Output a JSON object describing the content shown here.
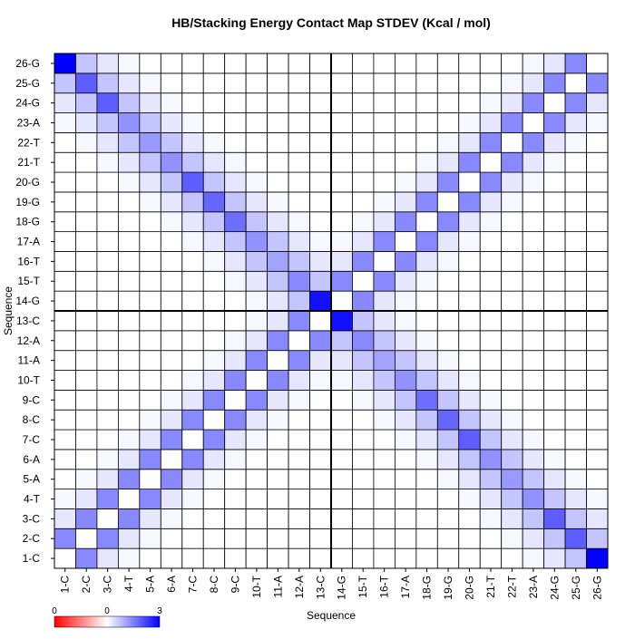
{
  "chart_data": {
    "type": "heatmap",
    "title": "HB/Stacking Energy Contact Map STDEV (Kcal / mol)",
    "x_label": "Sequence",
    "y_label": "Sequence",
    "categories": [
      "1-C",
      "2-C",
      "3-C",
      "4-T",
      "5-A",
      "6-A",
      "7-C",
      "8-C",
      "9-C",
      "10-T",
      "11-A",
      "12-A",
      "13-C",
      "14-G",
      "15-T",
      "16-T",
      "17-A",
      "18-G",
      "19-G",
      "20-G",
      "21-T",
      "22-T",
      "23-A",
      "24-G",
      "25-G",
      "26-G"
    ],
    "values": [
      [
        0,
        1.4,
        0.3,
        0.1,
        0,
        0,
        0,
        0,
        0,
        0,
        0,
        0,
        0,
        0,
        0,
        0,
        0,
        0,
        0,
        0,
        0,
        0,
        0.1,
        0.3,
        0.7,
        3.0
      ],
      [
        1.4,
        0,
        1.4,
        0.3,
        0.1,
        0,
        0,
        0,
        0,
        0,
        0,
        0,
        0,
        0,
        0,
        0,
        0,
        0,
        0,
        0,
        0,
        0.1,
        0.3,
        0.7,
        1.9,
        0.7
      ],
      [
        0.3,
        1.4,
        0,
        1.4,
        0.3,
        0.1,
        0,
        0,
        0,
        0,
        0,
        0,
        0,
        0,
        0,
        0,
        0,
        0,
        0,
        0,
        0.1,
        0.3,
        0.7,
        1.9,
        0.7,
        0.3
      ],
      [
        0.1,
        0.3,
        1.4,
        0,
        1.4,
        0.3,
        0.1,
        0,
        0,
        0,
        0,
        0,
        0,
        0,
        0,
        0,
        0,
        0,
        0,
        0.1,
        0.3,
        0.7,
        1.3,
        0.7,
        0.3,
        0.1
      ],
      [
        0,
        0.1,
        0.3,
        1.4,
        0,
        1.4,
        0.3,
        0.1,
        0,
        0,
        0,
        0,
        0,
        0,
        0,
        0,
        0,
        0,
        0.1,
        0.3,
        0.7,
        1.2,
        0.7,
        0.3,
        0.1,
        0
      ],
      [
        0,
        0,
        0.1,
        0.3,
        1.4,
        0,
        1.4,
        0.3,
        0.1,
        0,
        0,
        0,
        0,
        0,
        0,
        0,
        0,
        0.1,
        0.3,
        0.7,
        1.3,
        0.7,
        0.3,
        0.1,
        0,
        0
      ],
      [
        0,
        0,
        0,
        0.1,
        0.3,
        1.4,
        0,
        1.4,
        0.3,
        0.1,
        0,
        0,
        0,
        0,
        0,
        0,
        0.1,
        0.3,
        0.7,
        1.9,
        0.7,
        0.3,
        0.1,
        0,
        0,
        0
      ],
      [
        0,
        0,
        0,
        0,
        0.1,
        0.3,
        1.4,
        0,
        1.4,
        0.3,
        0.1,
        0,
        0,
        0,
        0,
        0.1,
        0.3,
        0.7,
        1.8,
        0.7,
        0.3,
        0.1,
        0,
        0,
        0,
        0
      ],
      [
        0,
        0,
        0,
        0,
        0,
        0.1,
        0.3,
        1.4,
        0,
        1.4,
        0.3,
        0.1,
        0,
        0,
        0.1,
        0.3,
        0.7,
        1.7,
        0.7,
        0.3,
        0.1,
        0,
        0,
        0,
        0,
        0
      ],
      [
        0,
        0,
        0,
        0,
        0,
        0,
        0.1,
        0.3,
        1.4,
        0,
        1.4,
        0.3,
        0.1,
        0.1,
        0.3,
        0.7,
        1.3,
        0.7,
        0.3,
        0.1,
        0,
        0,
        0,
        0,
        0,
        0
      ],
      [
        0,
        0,
        0,
        0,
        0,
        0,
        0,
        0.1,
        0.3,
        1.4,
        0,
        1.4,
        0.3,
        0.3,
        0.7,
        1.1,
        0.7,
        0.3,
        0.1,
        0,
        0,
        0,
        0,
        0,
        0,
        0
      ],
      [
        0,
        0,
        0,
        0,
        0,
        0,
        0,
        0,
        0.1,
        0.3,
        1.4,
        0,
        1.4,
        0.7,
        1.4,
        0.7,
        0.3,
        0.1,
        0,
        0,
        0,
        0,
        0,
        0,
        0,
        0
      ],
      [
        0,
        0,
        0,
        0,
        0,
        0,
        0,
        0,
        0,
        0.1,
        0.3,
        1.4,
        0,
        2.8,
        0.7,
        0.3,
        0.1,
        0,
        0,
        0,
        0,
        0,
        0,
        0,
        0,
        0
      ],
      [
        0,
        0,
        0,
        0,
        0,
        0,
        0,
        0,
        0,
        0.1,
        0.3,
        0.7,
        2.8,
        0,
        1.4,
        0.3,
        0.1,
        0,
        0,
        0,
        0,
        0,
        0,
        0,
        0,
        0
      ],
      [
        0,
        0,
        0,
        0,
        0,
        0,
        0,
        0,
        0.1,
        0.3,
        0.7,
        1.4,
        0.7,
        1.4,
        0,
        1.4,
        0.3,
        0.1,
        0,
        0,
        0,
        0,
        0,
        0,
        0,
        0
      ],
      [
        0,
        0,
        0,
        0,
        0,
        0,
        0,
        0.1,
        0.3,
        0.7,
        1.1,
        0.7,
        0.3,
        0.3,
        1.4,
        0,
        1.4,
        0.3,
        0.1,
        0,
        0,
        0,
        0,
        0,
        0,
        0
      ],
      [
        0,
        0,
        0,
        0,
        0,
        0,
        0.1,
        0.3,
        0.7,
        1.3,
        0.7,
        0.3,
        0.1,
        0.1,
        0.3,
        1.4,
        0,
        1.4,
        0.3,
        0.1,
        0,
        0,
        0,
        0,
        0,
        0
      ],
      [
        0,
        0,
        0,
        0,
        0,
        0.1,
        0.3,
        0.7,
        1.7,
        0.7,
        0.3,
        0.1,
        0,
        0,
        0.1,
        0.3,
        1.4,
        0,
        1.4,
        0.3,
        0.1,
        0,
        0,
        0,
        0,
        0
      ],
      [
        0,
        0,
        0,
        0,
        0.1,
        0.3,
        0.7,
        1.8,
        0.7,
        0.3,
        0.1,
        0,
        0,
        0,
        0,
        0.1,
        0.3,
        1.4,
        0,
        1.4,
        0.3,
        0.1,
        0,
        0,
        0,
        0
      ],
      [
        0,
        0,
        0,
        0.1,
        0.3,
        0.7,
        1.9,
        0.7,
        0.3,
        0.1,
        0,
        0,
        0,
        0,
        0,
        0,
        0.1,
        0.3,
        1.4,
        0,
        1.4,
        0.3,
        0.1,
        0,
        0,
        0
      ],
      [
        0,
        0,
        0.1,
        0.3,
        0.7,
        1.3,
        0.7,
        0.3,
        0.1,
        0,
        0,
        0,
        0,
        0,
        0,
        0,
        0,
        0.1,
        0.3,
        1.4,
        0,
        1.4,
        0.3,
        0.1,
        0,
        0
      ],
      [
        0,
        0.1,
        0.3,
        0.7,
        1.2,
        0.7,
        0.3,
        0.1,
        0,
        0,
        0,
        0,
        0,
        0,
        0,
        0,
        0,
        0,
        0.1,
        0.3,
        1.4,
        0,
        1.4,
        0.3,
        0.1,
        0
      ],
      [
        0.1,
        0.3,
        0.7,
        1.3,
        0.7,
        0.3,
        0.1,
        0,
        0,
        0,
        0,
        0,
        0,
        0,
        0,
        0,
        0,
        0,
        0,
        0.1,
        0.3,
        1.4,
        0,
        1.4,
        0.3,
        0.1
      ],
      [
        0.3,
        0.7,
        1.9,
        0.7,
        0.3,
        0.1,
        0,
        0,
        0,
        0,
        0,
        0,
        0,
        0,
        0,
        0,
        0,
        0,
        0,
        0,
        0.1,
        0.3,
        1.4,
        0,
        1.4,
        0.3
      ],
      [
        0.7,
        1.9,
        0.7,
        0.3,
        0.1,
        0,
        0,
        0,
        0,
        0,
        0,
        0,
        0,
        0,
        0,
        0,
        0,
        0,
        0,
        0,
        0,
        0.1,
        0.3,
        1.4,
        0,
        1.4
      ],
      [
        3.0,
        0.7,
        0.3,
        0.1,
        0,
        0,
        0,
        0,
        0,
        0,
        0,
        0,
        0,
        0,
        0,
        0,
        0,
        0,
        0,
        0,
        0,
        0,
        0.1,
        0.3,
        1.4,
        0
      ]
    ],
    "clim": [
      0,
      3
    ],
    "colors": [
      "#ff0000",
      "#ffffff",
      "#0000ff"
    ],
    "colorbar_labels": [
      "0",
      "0",
      "3"
    ]
  }
}
